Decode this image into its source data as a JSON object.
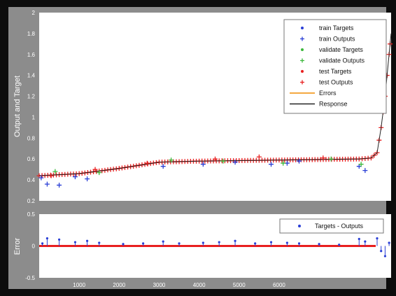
{
  "colors": {
    "frame": "#0d0d0d",
    "figure_bg": "#8c8c8c",
    "axes_bg": "#ffffff",
    "train": "#2a3fd6",
    "validate": "#3cb83c",
    "test": "#e81f1f",
    "errors_line": "#f08c00",
    "response_line": "#222222",
    "tick_text": "#ffffff"
  },
  "chart_data": [
    {
      "type": "scatter",
      "panel": "top",
      "ylabel": "Output and Target",
      "xlabel": "",
      "xlim": [
        0,
        8800
      ],
      "ylim": [
        0.2,
        2
      ],
      "yticks": [
        "0.2",
        "0.4",
        "0.6",
        "0.8",
        "1",
        "1.2",
        "1.4",
        "1.6",
        "1.8",
        "2"
      ],
      "grid": false,
      "legend_position": "top-right",
      "legend": [
        {
          "label": "train Targets",
          "kind": "dot",
          "color_key": "train"
        },
        {
          "label": "train Outputs",
          "kind": "plus",
          "color_key": "train"
        },
        {
          "label": "validate Targets",
          "kind": "dot",
          "color_key": "validate"
        },
        {
          "label": "validate Outputs",
          "kind": "plus",
          "color_key": "validate"
        },
        {
          "label": "test Targets",
          "kind": "dot",
          "color_key": "test"
        },
        {
          "label": "test Outputs",
          "kind": "plus",
          "color_key": "test"
        },
        {
          "label": "Errors",
          "kind": "line",
          "color_key": "errors_line"
        },
        {
          "label": "Response",
          "kind": "line",
          "color_key": "response_line"
        }
      ],
      "series": [
        {
          "name": "Response",
          "x": [
            0,
            1000,
            2000,
            3000,
            4000,
            5000,
            6000,
            8000,
            8300,
            8450,
            8550,
            8650,
            8750,
            8800
          ],
          "y": [
            0.44,
            0.46,
            0.51,
            0.57,
            0.58,
            0.585,
            0.59,
            0.6,
            0.61,
            0.66,
            0.9,
            1.2,
            1.6,
            1.8
          ]
        },
        {
          "name": "train Outputs",
          "x": [
            50,
            200,
            500,
            900,
            1200,
            3100,
            4100,
            4900,
            5800,
            6200,
            6500,
            8000,
            8150
          ],
          "y": [
            0.42,
            0.36,
            0.35,
            0.43,
            0.41,
            0.53,
            0.55,
            0.57,
            0.55,
            0.56,
            0.58,
            0.53,
            0.49
          ]
        },
        {
          "name": "validate Outputs",
          "x": [
            400,
            1500,
            3300,
            4600,
            6100,
            7300,
            8050
          ],
          "y": [
            0.48,
            0.47,
            0.59,
            0.58,
            0.56,
            0.6,
            0.55
          ]
        },
        {
          "name": "test Outputs",
          "x": [
            300,
            1400,
            2700,
            4400,
            5500,
            7100
          ],
          "y": [
            0.44,
            0.5,
            0.56,
            0.6,
            0.62,
            0.61
          ]
        }
      ]
    },
    {
      "type": "scatter",
      "panel": "bottom",
      "ylabel": "Error",
      "xlabel": "",
      "xlim": [
        0,
        8800
      ],
      "ylim": [
        -0.5,
        0.5
      ],
      "yticks": [
        "-0.5",
        "0",
        "0.5"
      ],
      "xticks": [
        "1000",
        "2000",
        "3000",
        "4000",
        "5000",
        "6000"
      ],
      "xtick_values": [
        1000,
        2000,
        3000,
        4000,
        5000,
        6000
      ],
      "grid": false,
      "legend_position": "top-right",
      "legend": [
        {
          "label": "Targets - Outputs",
          "kind": "dot",
          "color_key": "train"
        }
      ],
      "series": [
        {
          "name": "Targets - Outputs",
          "x": [
            80,
            200,
            500,
            900,
            1200,
            1500,
            2100,
            2600,
            3100,
            3500,
            4100,
            4500,
            4900,
            5400,
            5800,
            6200,
            6500,
            7000,
            7500,
            8000,
            8150,
            8450,
            8550,
            8650,
            8750
          ],
          "y": [
            0.04,
            0.12,
            0.1,
            0.06,
            0.08,
            0.05,
            0.03,
            0.04,
            0.07,
            0.04,
            0.05,
            0.06,
            0.08,
            0.04,
            0.06,
            0.05,
            0.04,
            0.03,
            0.02,
            0.11,
            0.07,
            0.12,
            -0.08,
            -0.16,
            0.05
          ]
        }
      ]
    }
  ]
}
